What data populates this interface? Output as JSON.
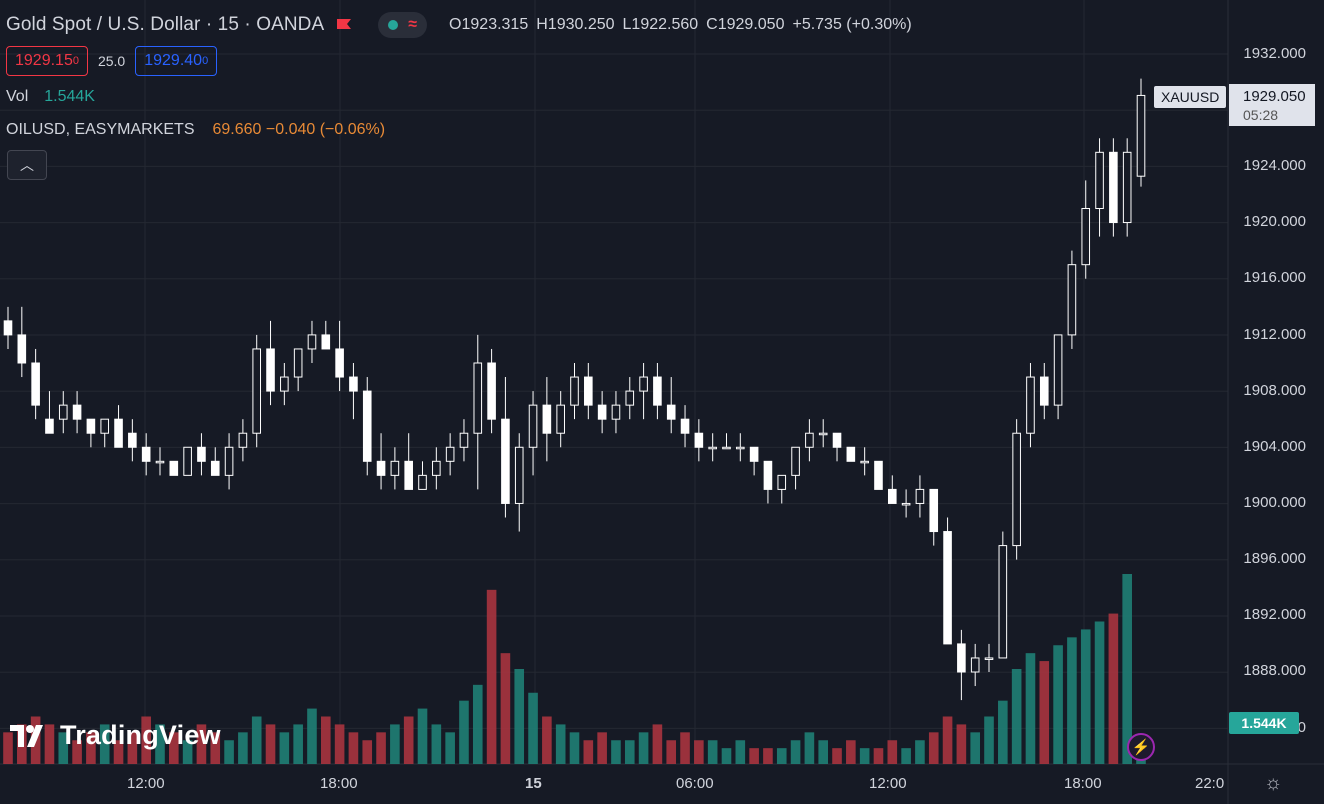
{
  "header": {
    "symbol_title": "Gold Spot / U.S. Dollar · 15 · OANDA",
    "ohlc": {
      "open": "O1923.315",
      "high": "H1930.250",
      "low": "L1922.560",
      "close": "C1929.050",
      "change": "+5.735 (+0.30%)"
    }
  },
  "trade": {
    "sell_main": "1929.15",
    "sell_small": "0",
    "spread": "25.0",
    "buy_main": "1929.40",
    "buy_small": "0"
  },
  "volume_legend": {
    "label": "Vol",
    "value": "1.544K"
  },
  "compare_legend": {
    "symbol": "OILUSD, EASYMARKETS",
    "values": "69.660 −0.040 (−0.06%)"
  },
  "price_axis": {
    "ticks": [
      "1932.000",
      "1928.000",
      "1924.000",
      "1920.000",
      "1916.000",
      "1912.000",
      "1908.000",
      "1904.000",
      "1900.000",
      "1896.000",
      "1892.000",
      "1888.000",
      "0"
    ]
  },
  "last_price": {
    "symbol": "XAUUSD",
    "value": "1929.050",
    "countdown": "05:28"
  },
  "volume_tag": "1.544K",
  "time_axis": {
    "labels": [
      "12:00",
      "18:00",
      "15",
      "06:00",
      "12:00",
      "18:00",
      "22:0"
    ]
  },
  "logo_text": "TradingView",
  "colors": {
    "up_volume": "#26a69a",
    "down_volume": "#f23645",
    "candle": "#ffffff",
    "background": "#161a25",
    "grid": "#242832"
  },
  "chart_data": {
    "type": "candlestick",
    "y_range": [
      1885,
      1933
    ],
    "candles": [
      [
        1913,
        1914,
        1911,
        1912
      ],
      [
        1912,
        1914,
        1909,
        1910
      ],
      [
        1910,
        1911,
        1906,
        1907
      ],
      [
        1906,
        1908,
        1905,
        1905
      ],
      [
        1906,
        1908,
        1905,
        1907
      ],
      [
        1907,
        1908,
        1905,
        1906
      ],
      [
        1906,
        1906,
        1904,
        1905
      ],
      [
        1905,
        1906,
        1904,
        1906
      ],
      [
        1906,
        1907,
        1904,
        1904
      ],
      [
        1905,
        1906,
        1903,
        1904
      ],
      [
        1904,
        1905,
        1902,
        1903
      ],
      [
        1903,
        1904,
        1902,
        1903
      ],
      [
        1903,
        1903,
        1902,
        1902
      ],
      [
        1902,
        1904,
        1902,
        1904
      ],
      [
        1904,
        1905,
        1902,
        1903
      ],
      [
        1903,
        1904,
        1902,
        1902
      ],
      [
        1902,
        1905,
        1901,
        1904
      ],
      [
        1904,
        1906,
        1903,
        1905
      ],
      [
        1905,
        1912,
        1904,
        1911
      ],
      [
        1911,
        1913,
        1907,
        1908
      ],
      [
        1908,
        1910,
        1907,
        1909
      ],
      [
        1909,
        1911,
        1908,
        1911
      ],
      [
        1911,
        1913,
        1910,
        1912
      ],
      [
        1912,
        1913,
        1911,
        1911
      ],
      [
        1911,
        1913,
        1908,
        1909
      ],
      [
        1909,
        1910,
        1906,
        1908
      ],
      [
        1908,
        1909,
        1902,
        1903
      ],
      [
        1903,
        1905,
        1901,
        1902
      ],
      [
        1902,
        1904,
        1901,
        1903
      ],
      [
        1903,
        1905,
        1901,
        1901
      ],
      [
        1901,
        1903,
        1901,
        1902
      ],
      [
        1902,
        1904,
        1901,
        1903
      ],
      [
        1903,
        1905,
        1902,
        1904
      ],
      [
        1904,
        1906,
        1903,
        1905
      ],
      [
        1905,
        1912,
        1901,
        1910
      ],
      [
        1910,
        1911,
        1905,
        1906
      ],
      [
        1906,
        1909,
        1899,
        1900
      ],
      [
        1900,
        1905,
        1898,
        1904
      ],
      [
        1904,
        1908,
        1902,
        1907
      ],
      [
        1907,
        1909,
        1903,
        1905
      ],
      [
        1905,
        1908,
        1904,
        1907
      ],
      [
        1907,
        1910,
        1906,
        1909
      ],
      [
        1909,
        1910,
        1906,
        1907
      ],
      [
        1907,
        1908,
        1905,
        1906
      ],
      [
        1906,
        1908,
        1905,
        1907
      ],
      [
        1907,
        1909,
        1906,
        1908
      ],
      [
        1908,
        1910,
        1906,
        1909
      ],
      [
        1909,
        1910,
        1906,
        1907
      ],
      [
        1907,
        1909,
        1905,
        1906
      ],
      [
        1906,
        1907,
        1904,
        1905
      ],
      [
        1905,
        1906,
        1903,
        1904
      ],
      [
        1904,
        1905,
        1903,
        1904
      ],
      [
        1904,
        1905,
        1904,
        1904
      ],
      [
        1904,
        1905,
        1903,
        1904
      ],
      [
        1904,
        1904,
        1902,
        1903
      ],
      [
        1903,
        1903,
        1900,
        1901
      ],
      [
        1901,
        1902,
        1900,
        1902
      ],
      [
        1902,
        1904,
        1901,
        1904
      ],
      [
        1904,
        1906,
        1903,
        1905
      ],
      [
        1905,
        1906,
        1904,
        1905
      ],
      [
        1905,
        1905,
        1903,
        1904
      ],
      [
        1904,
        1904,
        1903,
        1903
      ],
      [
        1903,
        1904,
        1902,
        1903
      ],
      [
        1903,
        1903,
        1901,
        1901
      ],
      [
        1901,
        1902,
        1900,
        1900
      ],
      [
        1900,
        1901,
        1899,
        1900
      ],
      [
        1900,
        1902,
        1899,
        1901
      ],
      [
        1901,
        1901,
        1897,
        1898
      ],
      [
        1898,
        1899,
        1890,
        1890
      ],
      [
        1890,
        1891,
        1886,
        1888
      ],
      [
        1888,
        1890,
        1887,
        1889
      ],
      [
        1889,
        1890,
        1888,
        1889
      ],
      [
        1889,
        1898,
        1889,
        1897
      ],
      [
        1897,
        1906,
        1896,
        1905
      ],
      [
        1905,
        1910,
        1904,
        1909
      ],
      [
        1909,
        1910,
        1906,
        1907
      ],
      [
        1907,
        1912,
        1906,
        1912
      ],
      [
        1912,
        1918,
        1911,
        1917
      ],
      [
        1917,
        1923,
        1916,
        1921
      ],
      [
        1921,
        1926,
        1919,
        1925
      ],
      [
        1925,
        1926,
        1919,
        1920
      ],
      [
        1920,
        1926,
        1919,
        1925
      ],
      [
        1923.3,
        1930.25,
        1922.56,
        1929.05
      ]
    ],
    "volume": [
      4,
      5,
      6,
      5,
      4,
      3,
      4,
      5,
      3,
      4,
      6,
      5,
      4,
      3,
      5,
      4,
      3,
      4,
      6,
      5,
      4,
      5,
      7,
      6,
      5,
      4,
      3,
      4,
      5,
      6,
      7,
      5,
      4,
      8,
      10,
      22,
      14,
      12,
      9,
      6,
      5,
      4,
      3,
      4,
      3,
      3,
      4,
      5,
      3,
      4,
      3,
      3,
      2,
      3,
      2,
      2,
      2,
      3,
      4,
      3,
      2,
      3,
      2,
      2,
      3,
      2,
      3,
      4,
      6,
      5,
      4,
      6,
      8,
      12,
      14,
      13,
      15,
      16,
      17,
      18,
      19,
      24,
      1.544
    ]
  }
}
